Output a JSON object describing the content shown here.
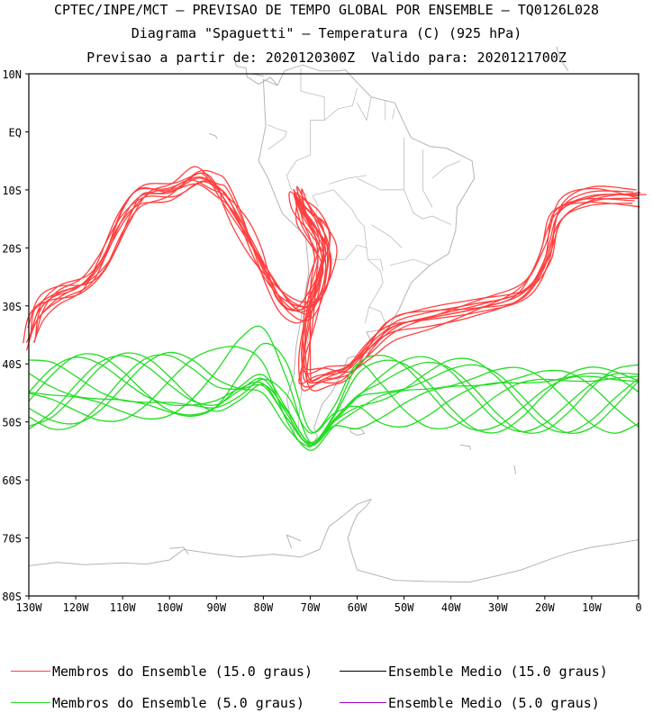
{
  "titles": {
    "line1": "CPTEC/INPE/MCT – PREVISAO DE TEMPO GLOBAL POR ENSEMBLE – TQ0126L028",
    "line2": "Diagrama \"Spaguetti\" – Temperatura (C) (925 hPa)",
    "line3": "Previsao a partir de: 2020120300Z  Valido para: 2020121700Z"
  },
  "map": {
    "lat_labels": [
      "10N",
      "EQ",
      "10S",
      "20S",
      "30S",
      "40S",
      "50S",
      "60S",
      "70S",
      "80S"
    ],
    "lon_labels": [
      "130W",
      "120W",
      "110W",
      "100W",
      "90W",
      "80W",
      "70W",
      "60W",
      "50W",
      "40W",
      "30W",
      "20W",
      "10W",
      "0"
    ],
    "lon_range": [
      -130,
      0
    ],
    "lat_range": [
      -80,
      10
    ],
    "coastline_color": "#b4b4b4"
  },
  "legend": {
    "items": [
      {
        "label": "Membros do Ensemble (15.0 graus)",
        "color": "#ff4040"
      },
      {
        "label": "Ensemble Medio (15.0 graus)",
        "color": "#000000"
      },
      {
        "label": "Membros do Ensemble (5.0 graus)",
        "color": "#22dd22"
      },
      {
        "label": "Ensemble Medio (5.0 graus)",
        "color": "#a000c0"
      }
    ]
  }
}
